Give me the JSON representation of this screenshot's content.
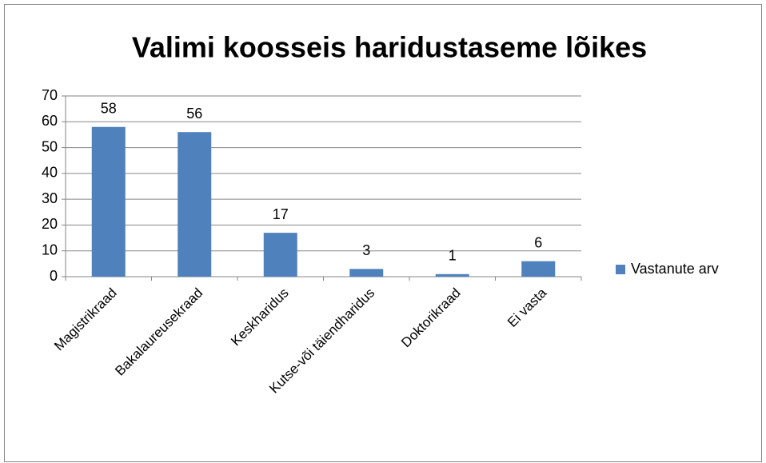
{
  "chart_data": {
    "type": "bar",
    "title": "Valimi koosseis haridustaseme lõikes",
    "categories": [
      "Magistrikraad",
      "Bakalaureusekraad",
      "Keskharidus",
      "Kutse-või täiendharidus",
      "Doktorikraad",
      "Ei vasta"
    ],
    "series": [
      {
        "name": "Vastanute arv",
        "color": "#4f81bd",
        "values": [
          58,
          56,
          17,
          3,
          1,
          6
        ]
      }
    ],
    "ylim": [
      0,
      70
    ],
    "yticks": [
      0,
      10,
      20,
      30,
      40,
      50,
      60,
      70
    ],
    "grid": true,
    "legend": "right"
  }
}
